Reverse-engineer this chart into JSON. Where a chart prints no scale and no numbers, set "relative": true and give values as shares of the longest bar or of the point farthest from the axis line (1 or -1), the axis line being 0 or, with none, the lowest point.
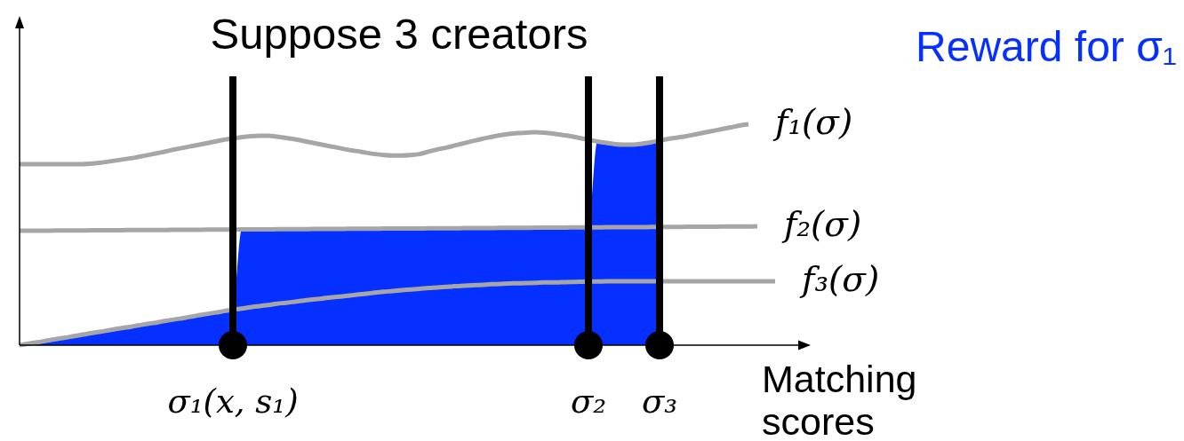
{
  "chart_data": {
    "type": "line",
    "title": "Suppose 3 creators",
    "xlabel": "Matching scores",
    "relative": true,
    "tick_labels": "x",
    "legend": "top right",
    "categories": [
      null,
      null,
      null,
      null,
      null,
      null,
      null,
      null,
      null,
      null,
      null,
      null,
      null,
      null,
      null,
      null,
      null,
      null,
      null,
      null,
      null,
      null,
      null,
      null,
      "σ₁(x, s₁)",
      null,
      null,
      null,
      null,
      null,
      null,
      null,
      null,
      null,
      null,
      null,
      null,
      null,
      null,
      null,
      null,
      null,
      null,
      null,
      null,
      null,
      null,
      null,
      null,
      null,
      null,
      null,
      null,
      null,
      null,
      null,
      null,
      null,
      null,
      null,
      null,
      null,
      null,
      null,
      "σ₂",
      null,
      null,
      null,
      null,
      null,
      null,
      null,
      "σ₃",
      null,
      null,
      null,
      null,
      null,
      null,
      null,
      null,
      null,
      null,
      null,
      null,
      null,
      null,
      null,
      null
    ],
    "series": [
      {
        "name": "Reward for σ₁",
        "type": "area",
        "color": "#0530ff",
        "values": [
          0,
          0.007,
          0.013,
          0.02,
          0.027,
          0.033,
          0.04,
          0.047,
          0.054,
          0.06,
          0.067,
          0.074,
          0.08,
          0.087,
          0.094,
          0.1,
          0.107,
          0.114,
          0.12,
          0.127,
          0.134,
          0.141,
          0.147,
          0.154,
          0.161,
          0.524,
          0.524,
          0.524,
          0.524,
          0.525,
          0.525,
          0.525,
          0.525,
          0.526,
          0.526,
          0.526,
          0.526,
          0.527,
          0.527,
          0.527,
          0.527,
          0.528,
          0.528,
          0.528,
          0.528,
          0.528,
          0.529,
          0.529,
          0.529,
          0.529,
          0.53,
          0.53,
          0.53,
          0.53,
          0.531,
          0.531,
          0.531,
          0.531,
          0.532,
          0.532,
          0.532,
          0.532,
          0.533,
          0.533,
          0.533,
          0.922,
          0.916,
          0.91,
          0.908,
          0.908,
          0.912,
          0.918,
          0.926,
          null,
          null,
          null,
          null,
          null,
          null,
          null,
          null,
          null,
          null,
          null,
          null,
          null,
          null,
          null,
          null
        ]
      },
      {
        "name": "f₁(σ)",
        "color": "#a6a6a6",
        "values": [
          0.819,
          0.819,
          0.819,
          0.819,
          0.819,
          0.819,
          0.819,
          0.819,
          0.821,
          0.825,
          0.831,
          0.837,
          0.843,
          0.849,
          0.857,
          0.865,
          0.873,
          0.882,
          0.89,
          0.898,
          0.906,
          0.914,
          0.922,
          0.93,
          0.936,
          0.942,
          0.946,
          0.948,
          0.948,
          0.944,
          0.938,
          0.932,
          0.924,
          0.916,
          0.908,
          0.9,
          0.892,
          0.884,
          0.878,
          0.871,
          0.865,
          0.861,
          0.859,
          0.859,
          0.861,
          0.865,
          0.876,
          0.886,
          0.894,
          0.904,
          0.914,
          0.924,
          0.934,
          0.942,
          0.95,
          0.956,
          0.96,
          0.962,
          0.964,
          0.962,
          0.958,
          0.952,
          0.946,
          0.938,
          0.93,
          0.922,
          0.916,
          0.91,
          0.908,
          0.908,
          0.912,
          0.918,
          0.926,
          0.934,
          0.94,
          0.946,
          0.954,
          0.962,
          0.97,
          0.978,
          0.986,
          0.994,
          1,
          null,
          null,
          null,
          null,
          null,
          null
        ]
      },
      {
        "name": "f₂(σ)",
        "color": "#a6a6a6",
        "values": [
          0.518,
          0.518,
          0.518,
          0.518,
          0.519,
          0.519,
          0.519,
          0.519,
          0.52,
          0.52,
          0.52,
          0.52,
          0.521,
          0.521,
          0.521,
          0.521,
          0.521,
          0.522,
          0.522,
          0.522,
          0.522,
          0.523,
          0.523,
          0.523,
          0.523,
          0.524,
          0.524,
          0.524,
          0.524,
          0.525,
          0.525,
          0.525,
          0.525,
          0.526,
          0.526,
          0.526,
          0.526,
          0.527,
          0.527,
          0.527,
          0.527,
          0.528,
          0.528,
          0.528,
          0.528,
          0.528,
          0.529,
          0.529,
          0.529,
          0.529,
          0.53,
          0.53,
          0.53,
          0.53,
          0.531,
          0.531,
          0.531,
          0.531,
          0.532,
          0.532,
          0.532,
          0.532,
          0.533,
          0.533,
          0.533,
          0.533,
          0.534,
          0.534,
          0.534,
          0.534,
          0.534,
          0.535,
          0.535,
          0.535,
          0.535,
          0.536,
          0.536,
          0.536,
          0.536,
          0.537,
          0.537,
          0.537,
          0.537,
          0.538,
          null,
          null,
          null,
          null,
          null
        ]
      },
      {
        "name": "f₃(σ)",
        "color": "#a6a6a6",
        "values": [
          0,
          0.007,
          0.013,
          0.02,
          0.027,
          0.033,
          0.04,
          0.047,
          0.054,
          0.06,
          0.067,
          0.074,
          0.08,
          0.087,
          0.094,
          0.1,
          0.107,
          0.114,
          0.12,
          0.127,
          0.134,
          0.141,
          0.147,
          0.154,
          0.161,
          0.166,
          0.172,
          0.177,
          0.182,
          0.188,
          0.192,
          0.197,
          0.202,
          0.207,
          0.211,
          0.216,
          0.22,
          0.224,
          0.229,
          0.233,
          0.238,
          0.242,
          0.245,
          0.249,
          0.252,
          0.255,
          0.259,
          0.261,
          0.264,
          0.267,
          0.269,
          0.271,
          0.273,
          0.276,
          0.277,
          0.279,
          0.28,
          0.281,
          0.282,
          0.284,
          0.284,
          0.285,
          0.286,
          0.287,
          0.288,
          0.288,
          0.289,
          0.289,
          0.289,
          0.289,
          0.289,
          0.289,
          0.289,
          0.289,
          0.289,
          0.289,
          0.289,
          0.289,
          0.289,
          0.289,
          0.289,
          0.289,
          0.289,
          0.289,
          0.289,
          0.289,
          null,
          null,
          null
        ]
      },
      {
        "type": "scatter",
        "x": [
          "σ₁(x, s₁)",
          "σ₂",
          "σ₃"
        ],
        "values": [
          0,
          0,
          0
        ],
        "color": "#000000",
        "marker": "circle"
      }
    ],
    "ref_lines": [
      {
        "axis": "x",
        "value": "σ₁(x, s₁)",
        "color": "#000000"
      },
      {
        "axis": "x",
        "value": "σ₂",
        "color": "#000000"
      },
      {
        "axis": "x",
        "value": "σ₃",
        "color": "#000000"
      }
    ]
  }
}
